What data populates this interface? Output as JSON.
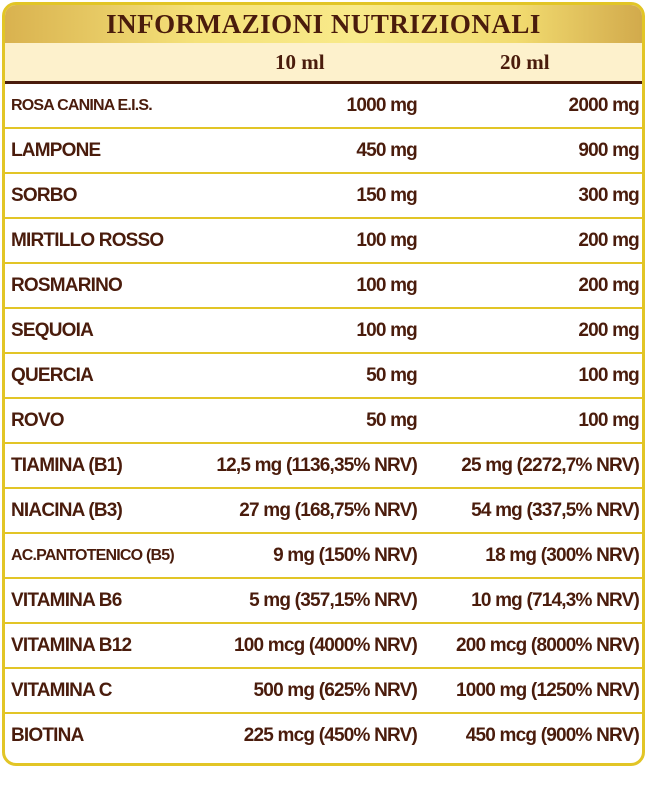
{
  "title": "INFORMAZIONI NUTRIZIONALI",
  "columns": [
    "10 ml",
    "20 ml"
  ],
  "rows": [
    {
      "name": "ROSA CANINA E.I.S.",
      "v1": "1000 mg",
      "v2": "2000 mg"
    },
    {
      "name": "LAMPONE",
      "v1": "450 mg",
      "v2": "900 mg"
    },
    {
      "name": "SORBO",
      "v1": "150 mg",
      "v2": "300 mg"
    },
    {
      "name": "MIRTILLO ROSSO",
      "v1": "100 mg",
      "v2": "200 mg"
    },
    {
      "name": "ROSMARINO",
      "v1": "100 mg",
      "v2": "200 mg"
    },
    {
      "name": "SEQUOIA",
      "v1": "100 mg",
      "v2": "200 mg"
    },
    {
      "name": "QUERCIA",
      "v1": "50 mg",
      "v2": "100 mg"
    },
    {
      "name": "ROVO",
      "v1": "50 mg",
      "v2": "100 mg"
    },
    {
      "name": "TIAMINA (B1)",
      "v1": "12,5 mg (1136,35% NRV)",
      "v2": "25 mg (2272,7% NRV)"
    },
    {
      "name": "NIACINA (B3)",
      "v1": "27 mg (168,75% NRV)",
      "v2": "54 mg (337,5% NRV)"
    },
    {
      "name": "AC.PANTOTENICO (B5)",
      "v1": "9 mg (150% NRV)",
      "v2": "18 mg (300% NRV)"
    },
    {
      "name": "VITAMINA B6",
      "v1": "5 mg (357,15% NRV)",
      "v2": "10 mg (714,3% NRV)"
    },
    {
      "name": "VITAMINA B12",
      "v1": "100 mcg (4000% NRV)",
      "v2": "200 mcg (8000% NRV)"
    },
    {
      "name": "VITAMINA C",
      "v1": "500 mg (625% NRV)",
      "v2": "1000 mg (1250% NRV)"
    },
    {
      "name": "BIOTINA",
      "v1": "225 mcg (450% NRV)",
      "v2": "450 mcg (900% NRV)"
    }
  ],
  "colors": {
    "border": "#e2c526",
    "text": "#4a1c0c",
    "header_bg": "#fdf1cc"
  }
}
